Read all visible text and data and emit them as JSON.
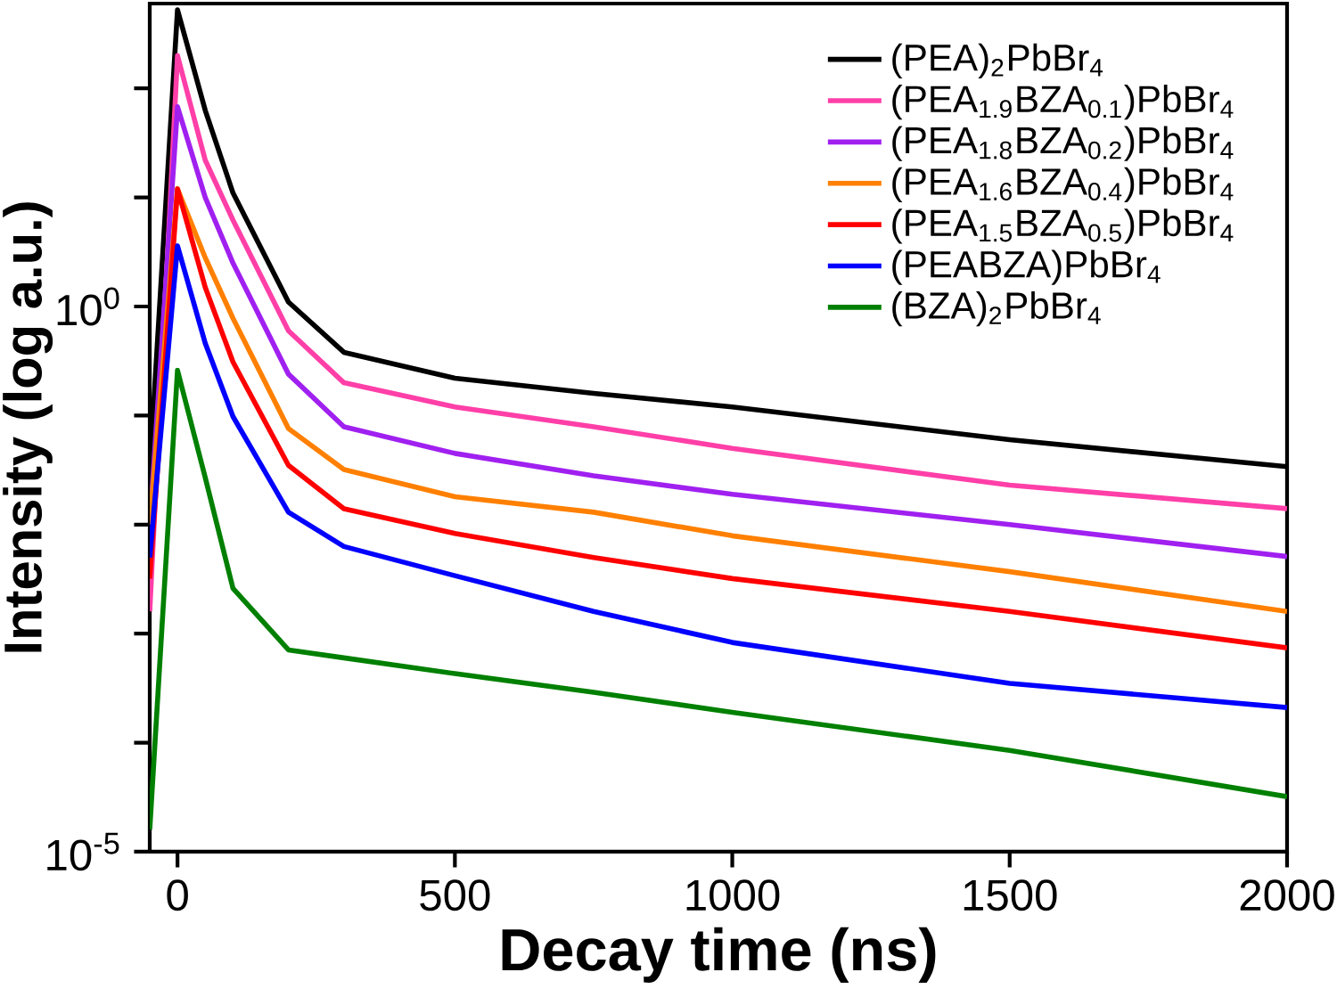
{
  "chart_data": {
    "type": "line",
    "xlabel": "Decay time (ns)",
    "ylabel": "Intensity (log a.u.)",
    "log": "y",
    "legend": "top right",
    "marker": "none",
    "line_style": "solid",
    "x": [
      -50,
      0,
      50,
      100,
      200,
      300,
      500,
      750,
      1000,
      1500,
      2000
    ],
    "xlim": [
      -50,
      2000
    ],
    "xticks": [
      0,
      500,
      1000,
      1500,
      2000
    ],
    "ylim": [
      1e-05,
      600
    ],
    "yticks": [
      {
        "value": 1e-05,
        "label": "10$^{-5}$"
      },
      {
        "value": 0.0001,
        "label": null
      },
      {
        "value": 0.001,
        "label": null
      },
      {
        "value": 0.01,
        "label": null
      },
      {
        "value": 0.1,
        "label": null
      },
      {
        "value": 1,
        "label": "10$^{0}$"
      },
      {
        "value": 10,
        "label": null
      },
      {
        "value": 100,
        "label": null
      }
    ],
    "series": [
      {
        "name": "(PEA)$_{2}$PbBr$_{4}$",
        "color": "#000000",
        "values": [
          0.032,
          525,
          63,
          11,
          1.1,
          0.38,
          0.22,
          0.16,
          0.12,
          0.06,
          0.034
        ]
      },
      {
        "name": "(PEA$_{1.9}$BZA$_{0.1}$)PbBr$_{4}$",
        "color": "#ff3fa8",
        "values": [
          0.0016,
          200,
          22,
          6.2,
          0.6,
          0.2,
          0.12,
          0.079,
          0.05,
          0.023,
          0.014
        ]
      },
      {
        "name": "(PEA$_{1.8}$BZA$_{0.2}$)PbBr$_{4}$",
        "color": "#a020f0",
        "values": [
          0.01,
          68,
          10,
          2.5,
          0.24,
          0.079,
          0.045,
          0.028,
          0.019,
          0.01,
          0.0051
        ]
      },
      {
        "name": "(PEA$_{1.6}$BZA$_{0.4}$)PbBr$_{4}$",
        "color": "#ff8000",
        "values": [
          0.01,
          12,
          2.8,
          0.78,
          0.076,
          0.032,
          0.018,
          0.013,
          0.0079,
          0.0037,
          0.0016
        ]
      },
      {
        "name": "(PEA$_{1.5}$BZA$_{0.5}$)PbBr$_{4}$",
        "color": "#ff0000",
        "values": [
          0.0032,
          12,
          1.5,
          0.31,
          0.035,
          0.014,
          0.0083,
          0.005,
          0.0032,
          0.0016,
          0.00074
        ]
      },
      {
        "name": "(PEABZA)PbBr$_{4}$",
        "color": "#0000ff",
        "values": [
          0.005,
          3.6,
          0.46,
          0.098,
          0.013,
          0.0063,
          0.0034,
          0.0016,
          0.00083,
          0.00035,
          0.00021
        ]
      },
      {
        "name": "(BZA)$_{2}$PbBr$_{4}$",
        "color": "#008000",
        "values": [
          1.6e-05,
          0.26,
          0.027,
          0.0026,
          0.00071,
          0.0006,
          0.00043,
          0.00029,
          0.00019,
          8.5e-05,
          3.2e-05
        ]
      }
    ]
  }
}
